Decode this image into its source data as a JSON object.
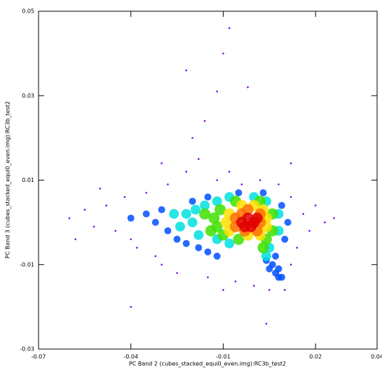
{
  "chart_data": {
    "type": "scatter",
    "xlabel": "PC Band 2 (cubes_stacked_equi0_even.img):RC3b_test2",
    "ylabel": "PC Band 3 (cubes_stacked_equi0_even.img):RC3b_test2",
    "xlim": [
      -0.07,
      0.04
    ],
    "ylim": [
      -0.03,
      0.05
    ],
    "xticks": [
      -0.07,
      -0.04,
      -0.01,
      0.02,
      0.04
    ],
    "yticks": [
      -0.03,
      -0.01,
      0.01,
      0.03,
      0.05
    ],
    "series": [
      {
        "color": "#7800ff",
        "x": [
          -0.06,
          -0.055,
          -0.052,
          -0.048,
          -0.045,
          -0.042,
          -0.04,
          -0.038,
          -0.035,
          -0.032,
          -0.03,
          -0.028,
          -0.025,
          -0.022,
          -0.02,
          -0.018,
          -0.016,
          -0.015,
          -0.012,
          -0.01,
          -0.008,
          -0.006,
          -0.004,
          0.0,
          0.002,
          0.005,
          0.008,
          0.01,
          0.012,
          0.014,
          0.016,
          0.018,
          0.02,
          0.023,
          0.026,
          -0.012,
          -0.01,
          -0.008,
          -0.022,
          -0.03,
          -0.002,
          0.012,
          -0.04,
          0.004,
          0.012,
          -0.05,
          -0.058
        ],
        "y": [
          0.001,
          0.003,
          -0.001,
          0.004,
          -0.002,
          0.006,
          -0.004,
          -0.006,
          0.007,
          -0.008,
          -0.01,
          0.009,
          -0.012,
          0.012,
          0.02,
          0.015,
          0.024,
          -0.013,
          0.01,
          -0.016,
          0.012,
          -0.014,
          0.009,
          -0.015,
          0.01,
          -0.016,
          0.009,
          -0.016,
          0.006,
          -0.006,
          0.002,
          -0.002,
          0.004,
          0.0,
          0.001,
          0.031,
          0.04,
          0.046,
          0.036,
          0.014,
          0.032,
          0.014,
          -0.02,
          -0.024,
          -0.01,
          0.008,
          -0.004
        ]
      },
      {
        "color": "#0050ff",
        "x": [
          -0.035,
          -0.032,
          -0.03,
          -0.028,
          -0.025,
          -0.022,
          -0.018,
          -0.015,
          -0.012,
          -0.04,
          -0.02,
          -0.015,
          -0.005,
          0.003,
          0.009,
          0.011,
          0.01,
          0.007,
          0.006,
          0.005,
          0.007,
          0.008,
          0.009,
          0.008,
          0.004
        ],
        "y": [
          0.002,
          0.0,
          0.003,
          -0.002,
          -0.004,
          -0.005,
          -0.006,
          -0.007,
          -0.008,
          0.001,
          0.005,
          0.006,
          0.007,
          0.007,
          0.004,
          0.0,
          -0.004,
          -0.008,
          -0.01,
          -0.011,
          -0.012,
          -0.013,
          -0.013,
          -0.011,
          -0.009
        ]
      },
      {
        "color": "#00e0e0",
        "x": [
          -0.022,
          -0.02,
          -0.018,
          -0.016,
          -0.019,
          -0.008,
          -0.012,
          0.0,
          0.004,
          0.008,
          0.008,
          0.005,
          0.004,
          -0.008,
          -0.012,
          -0.026,
          -0.024
        ],
        "y": [
          0.002,
          0.0,
          -0.003,
          0.004,
          0.003,
          0.006,
          0.005,
          0.006,
          0.005,
          0.002,
          -0.002,
          -0.006,
          -0.008,
          -0.005,
          -0.004,
          0.002,
          -0.001
        ]
      },
      {
        "color": "#40e000",
        "x": [
          -0.013,
          -0.012,
          -0.011,
          -0.01,
          0.006,
          0.006,
          0.004,
          0.003,
          0.002,
          -0.006,
          -0.005,
          -0.016,
          -0.014
        ],
        "y": [
          0.001,
          -0.001,
          0.003,
          -0.003,
          0.002,
          -0.002,
          -0.004,
          -0.006,
          0.005,
          0.005,
          -0.004,
          0.002,
          -0.002
        ]
      },
      {
        "color": "#ffe000",
        "x": [
          -0.009,
          -0.008,
          -0.008,
          0.004,
          0.004,
          0.0,
          -0.004,
          -0.002,
          0.002,
          0.003
        ],
        "y": [
          0.0,
          0.002,
          -0.002,
          0.001,
          -0.001,
          0.004,
          0.004,
          -0.003,
          -0.003,
          0.003
        ]
      },
      {
        "color": "#ff7000",
        "x": [
          -0.006,
          -0.006,
          0.002,
          0.002,
          -0.002,
          -0.003,
          0.001,
          -0.004
        ],
        "y": [
          0.001,
          -0.001,
          0.0,
          0.002,
          0.003,
          -0.002,
          -0.002,
          0.002
        ]
      },
      {
        "color": "#e00000",
        "x": [
          -0.004,
          -0.002,
          0.0,
          -0.003,
          -0.001,
          0.001
        ],
        "y": [
          0.0,
          0.001,
          0.0,
          -0.001,
          -0.001,
          0.001
        ]
      }
    ]
  }
}
